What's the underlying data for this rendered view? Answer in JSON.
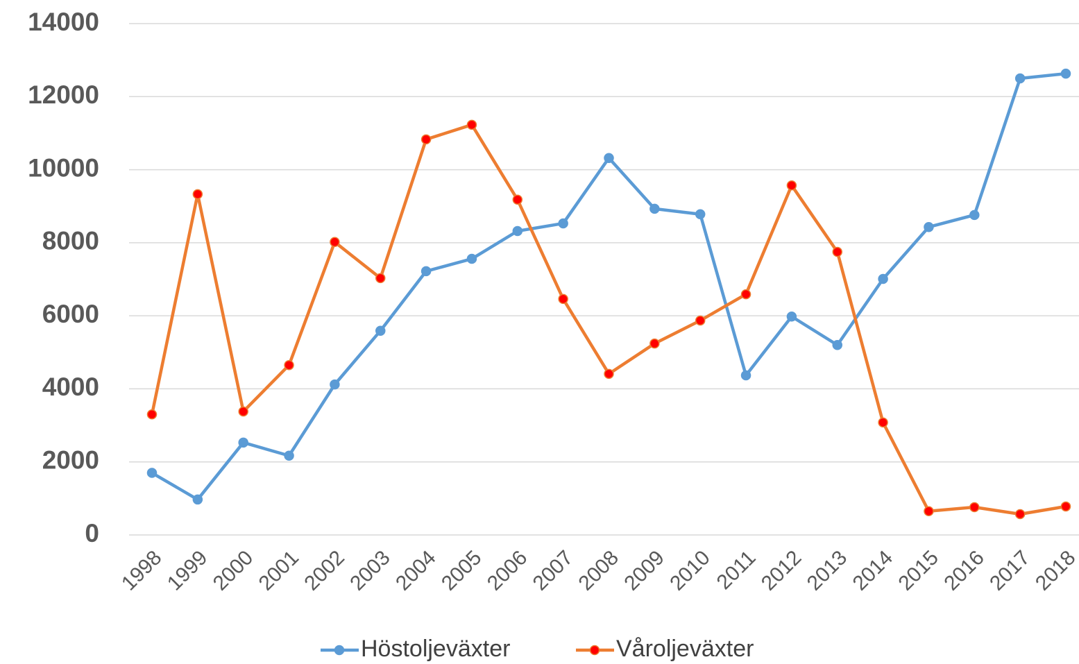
{
  "chart_data": {
    "type": "line",
    "categories": [
      "1998",
      "1999",
      "2000",
      "2001",
      "2002",
      "2003",
      "2004",
      "2005",
      "2006",
      "2007",
      "2008",
      "2009",
      "2010",
      "2011",
      "2012",
      "2013",
      "2014",
      "2015",
      "2016",
      "2017",
      "2018"
    ],
    "series": [
      {
        "name": "Höstoljeväxter",
        "color": "#5b9bd5",
        "marker_color": "#5b9bd5",
        "values": [
          1700,
          970,
          2530,
          2170,
          4120,
          5590,
          7220,
          7560,
          8320,
          8530,
          10320,
          8930,
          8780,
          4370,
          5980,
          5200,
          7010,
          8430,
          8760,
          12500,
          12630
        ]
      },
      {
        "name": "Våroljeväxter",
        "color": "#ed7d31",
        "marker_color": "#ff0000",
        "values": [
          3300,
          9330,
          3380,
          4650,
          8020,
          7030,
          10830,
          11230,
          9180,
          6460,
          4410,
          5240,
          5870,
          6590,
          9570,
          7750,
          3080,
          650,
          760,
          570,
          780
        ]
      }
    ],
    "ylim": [
      0,
      14000
    ],
    "yticks": [
      0,
      2000,
      4000,
      6000,
      8000,
      10000,
      12000,
      14000
    ],
    "grid": true,
    "legend": "bottom"
  }
}
